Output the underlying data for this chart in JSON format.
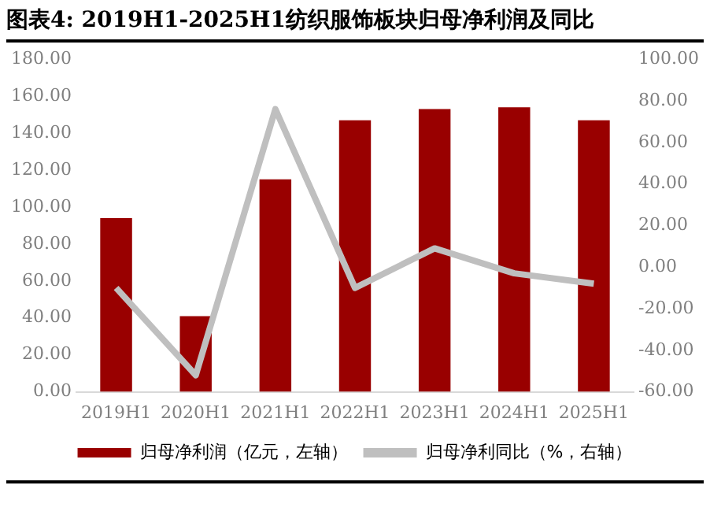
{
  "chart_data": {
    "type": "bar",
    "title": "图表4:  2019H1-2025H1纺织服饰板块归母净利润及同比",
    "categories": [
      "2019H1",
      "2020H1",
      "2021H1",
      "2022H1",
      "2023H1",
      "2024H1",
      "2025H1"
    ],
    "series": [
      {
        "name": "归母净利润（亿元，左轴）",
        "color": "#990000",
        "values": [
          94,
          41,
          115,
          147,
          153,
          154,
          147
        ]
      },
      {
        "name": "归母净利同比（%，右轴）",
        "type": "line",
        "axis": "y2",
        "color": "#bfbfbf",
        "values": [
          -10,
          -52,
          76,
          -10,
          9,
          -3,
          -8
        ]
      }
    ],
    "ylim": [
      0,
      180
    ],
    "yticks": [
      {
        "value": 0,
        "label": "0.00"
      },
      {
        "value": 20,
        "label": "20.00"
      },
      {
        "value": 40,
        "label": "40.00"
      },
      {
        "value": 60,
        "label": "60.00"
      },
      {
        "value": 80,
        "label": "80.00"
      },
      {
        "value": 100,
        "label": "100.00"
      },
      {
        "value": 120,
        "label": "120.00"
      },
      {
        "value": 140,
        "label": "140.00"
      },
      {
        "value": 160,
        "label": "160.00"
      },
      {
        "value": 180,
        "label": "180.00"
      }
    ],
    "y2lim": [
      -60,
      100
    ],
    "y2ticks": [
      {
        "value": -60,
        "label": "-60.00"
      },
      {
        "value": -40,
        "label": "-40.00"
      },
      {
        "value": -20,
        "label": "-20.00"
      },
      {
        "value": 0,
        "label": "0.00"
      },
      {
        "value": 20,
        "label": "20.00"
      },
      {
        "value": 40,
        "label": "40.00"
      },
      {
        "value": 60,
        "label": "60.00"
      },
      {
        "value": 80,
        "label": "80.00"
      },
      {
        "value": 100,
        "label": "100.00"
      }
    ],
    "grid": false,
    "legend": "bottom",
    "marker": "none"
  }
}
